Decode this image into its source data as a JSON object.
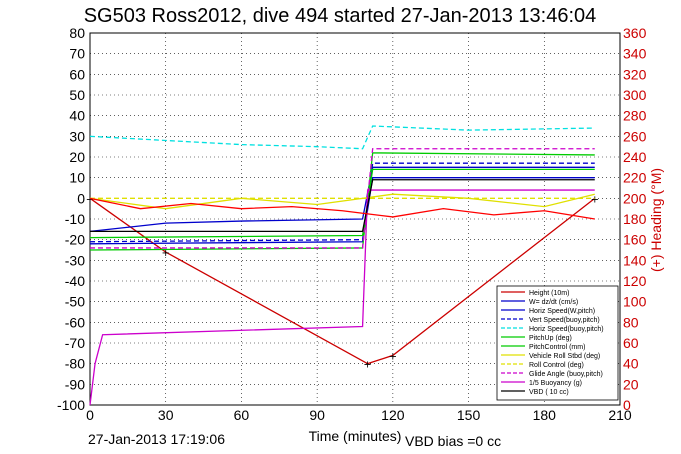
{
  "chart_data": {
    "type": "line",
    "title": "SG503 Ross2012, dive 494 started 27-Jan-2013 13:46:04",
    "xlabel": "Time (minutes)",
    "ylabel_right": "(+) Heading (°M)",
    "xlim": [
      0,
      210
    ],
    "ylim": [
      -100,
      80
    ],
    "ylim_right": [
      0,
      360
    ],
    "xticks": [
      "0",
      "30",
      "60",
      "90",
      "120",
      "150",
      "180",
      "210"
    ],
    "yticks": [
      "80",
      "70",
      "60",
      "50",
      "40",
      "30",
      "20",
      "10",
      "0",
      "-10",
      "-20",
      "-30",
      "-40",
      "-50",
      "-60",
      "-70",
      "-80",
      "-90",
      "-100"
    ],
    "yticks_right": [
      "360",
      "340",
      "320",
      "300",
      "280",
      "260",
      "240",
      "220",
      "200",
      "180",
      "160",
      "140",
      "120",
      "100",
      "80",
      "60",
      "40",
      "20",
      "0"
    ],
    "grid": true,
    "legend_placement": "bottom-right",
    "footer_left": "27-Jan-2013 17:19:06",
    "footer_right": "VBD bias =0 cc",
    "series": [
      {
        "name": "Height (10m)",
        "color": "#cc0000",
        "x": [
          0,
          30,
          110,
          120,
          200
        ],
        "y": [
          0,
          -26,
          -80,
          -76,
          0
        ]
      },
      {
        "name": "W= dz/dt (cm/s)",
        "color": "#0000cc",
        "x": [
          0,
          30,
          60,
          108,
          112,
          200
        ],
        "y": [
          -16,
          -12,
          -11,
          -10,
          15,
          15
        ]
      },
      {
        "name": "Horiz Speed(W,pitch)",
        "color": "#0000cc",
        "x": [
          0,
          108,
          112,
          200
        ],
        "y": [
          -22,
          -21,
          10,
          10
        ]
      },
      {
        "name": "Vert Speed(buoy,pitch)",
        "color": "#0000cc",
        "x": [
          0,
          108,
          112,
          200
        ],
        "y": [
          -21,
          -20,
          17,
          17
        ]
      },
      {
        "name": "Horiz Speed(buoy,pitch)",
        "color": "#00e0e0",
        "x": [
          0,
          30,
          60,
          90,
          108,
          112,
          150,
          200
        ],
        "y": [
          30,
          28,
          26,
          25,
          24,
          35,
          33,
          34
        ]
      },
      {
        "name": "PitchUp (deg)",
        "color": "#00cc00",
        "x": [
          0,
          108,
          112,
          200
        ],
        "y": [
          -25,
          -24,
          22,
          21
        ]
      },
      {
        "name": "PitchControl (mm)",
        "color": "#00cc00",
        "x": [
          0,
          108,
          112,
          200
        ],
        "y": [
          -19,
          -18,
          14,
          14
        ]
      },
      {
        "name": "Vehicle Roll Stbd (deg)",
        "color": "#e0e000",
        "x": [
          0,
          30,
          60,
          90,
          120,
          150,
          180,
          200
        ],
        "y": [
          0,
          -5,
          0,
          -3,
          2,
          0,
          -4,
          2
        ]
      },
      {
        "name": "Roll Control (deg)",
        "color": "#e0e000",
        "x": [
          0,
          108,
          112,
          200
        ],
        "y": [
          0,
          0,
          0,
          0
        ]
      },
      {
        "name": "Glide Angle (buoy,pitch)",
        "color": "#cc00cc",
        "x": [
          0,
          108,
          112,
          200
        ],
        "y": [
          -24,
          -24,
          24,
          24
        ]
      },
      {
        "name": "1/5 Buoyancy (g)",
        "color": "#cc00cc",
        "x": [
          0,
          2,
          5,
          108,
          110,
          200
        ],
        "y": [
          -100,
          -80,
          -66,
          -62,
          4,
          4
        ]
      },
      {
        "name": "VBD ( 10 cc)",
        "color": "#000000",
        "x": [
          0,
          108,
          112,
          200
        ],
        "y": [
          -16,
          -16,
          9,
          9
        ]
      },
      {
        "name": "Heading (°M)",
        "color": "#ff0000",
        "axis": "right",
        "x": [
          0,
          20,
          40,
          60,
          80,
          100,
          110,
          120,
          140,
          160,
          180,
          200
        ],
        "y": [
          200,
          190,
          195,
          190,
          192,
          188,
          185,
          182,
          190,
          184,
          188,
          180
        ]
      }
    ]
  }
}
